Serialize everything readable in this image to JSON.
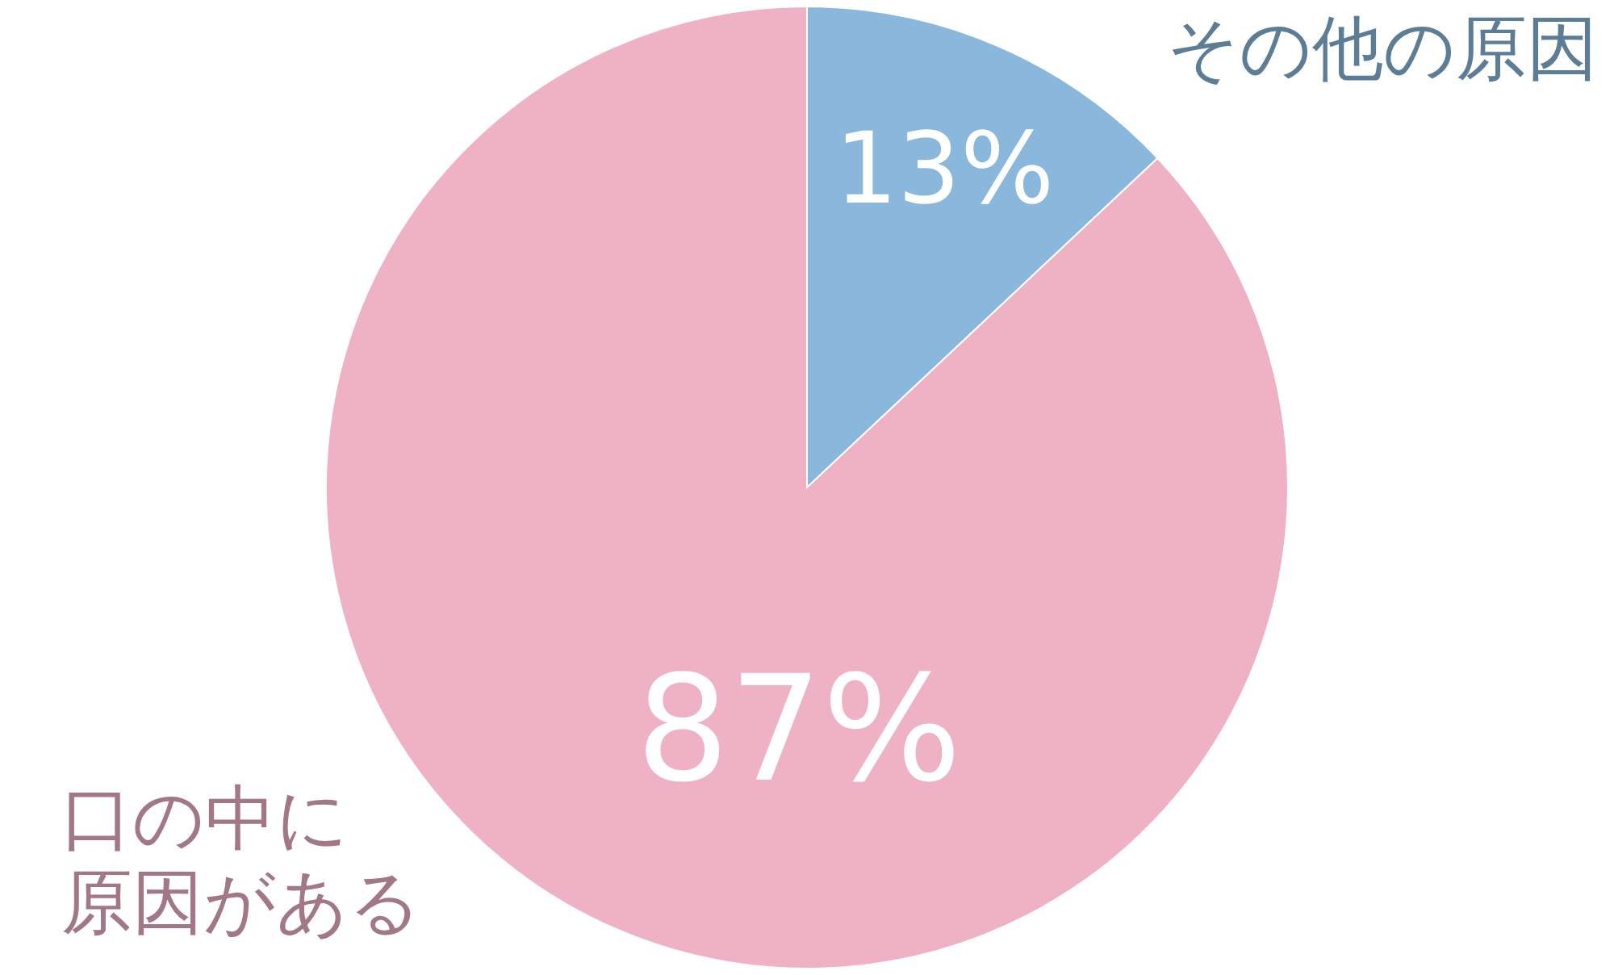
{
  "chart_data": {
    "type": "pie",
    "categories": [
      "その他の原因",
      "口の中に原因がある"
    ],
    "values": [
      13,
      87
    ],
    "colors": [
      "#8ab8dc",
      "#eeb2c4"
    ],
    "value_labels": [
      "13%",
      "87%"
    ]
  }
}
